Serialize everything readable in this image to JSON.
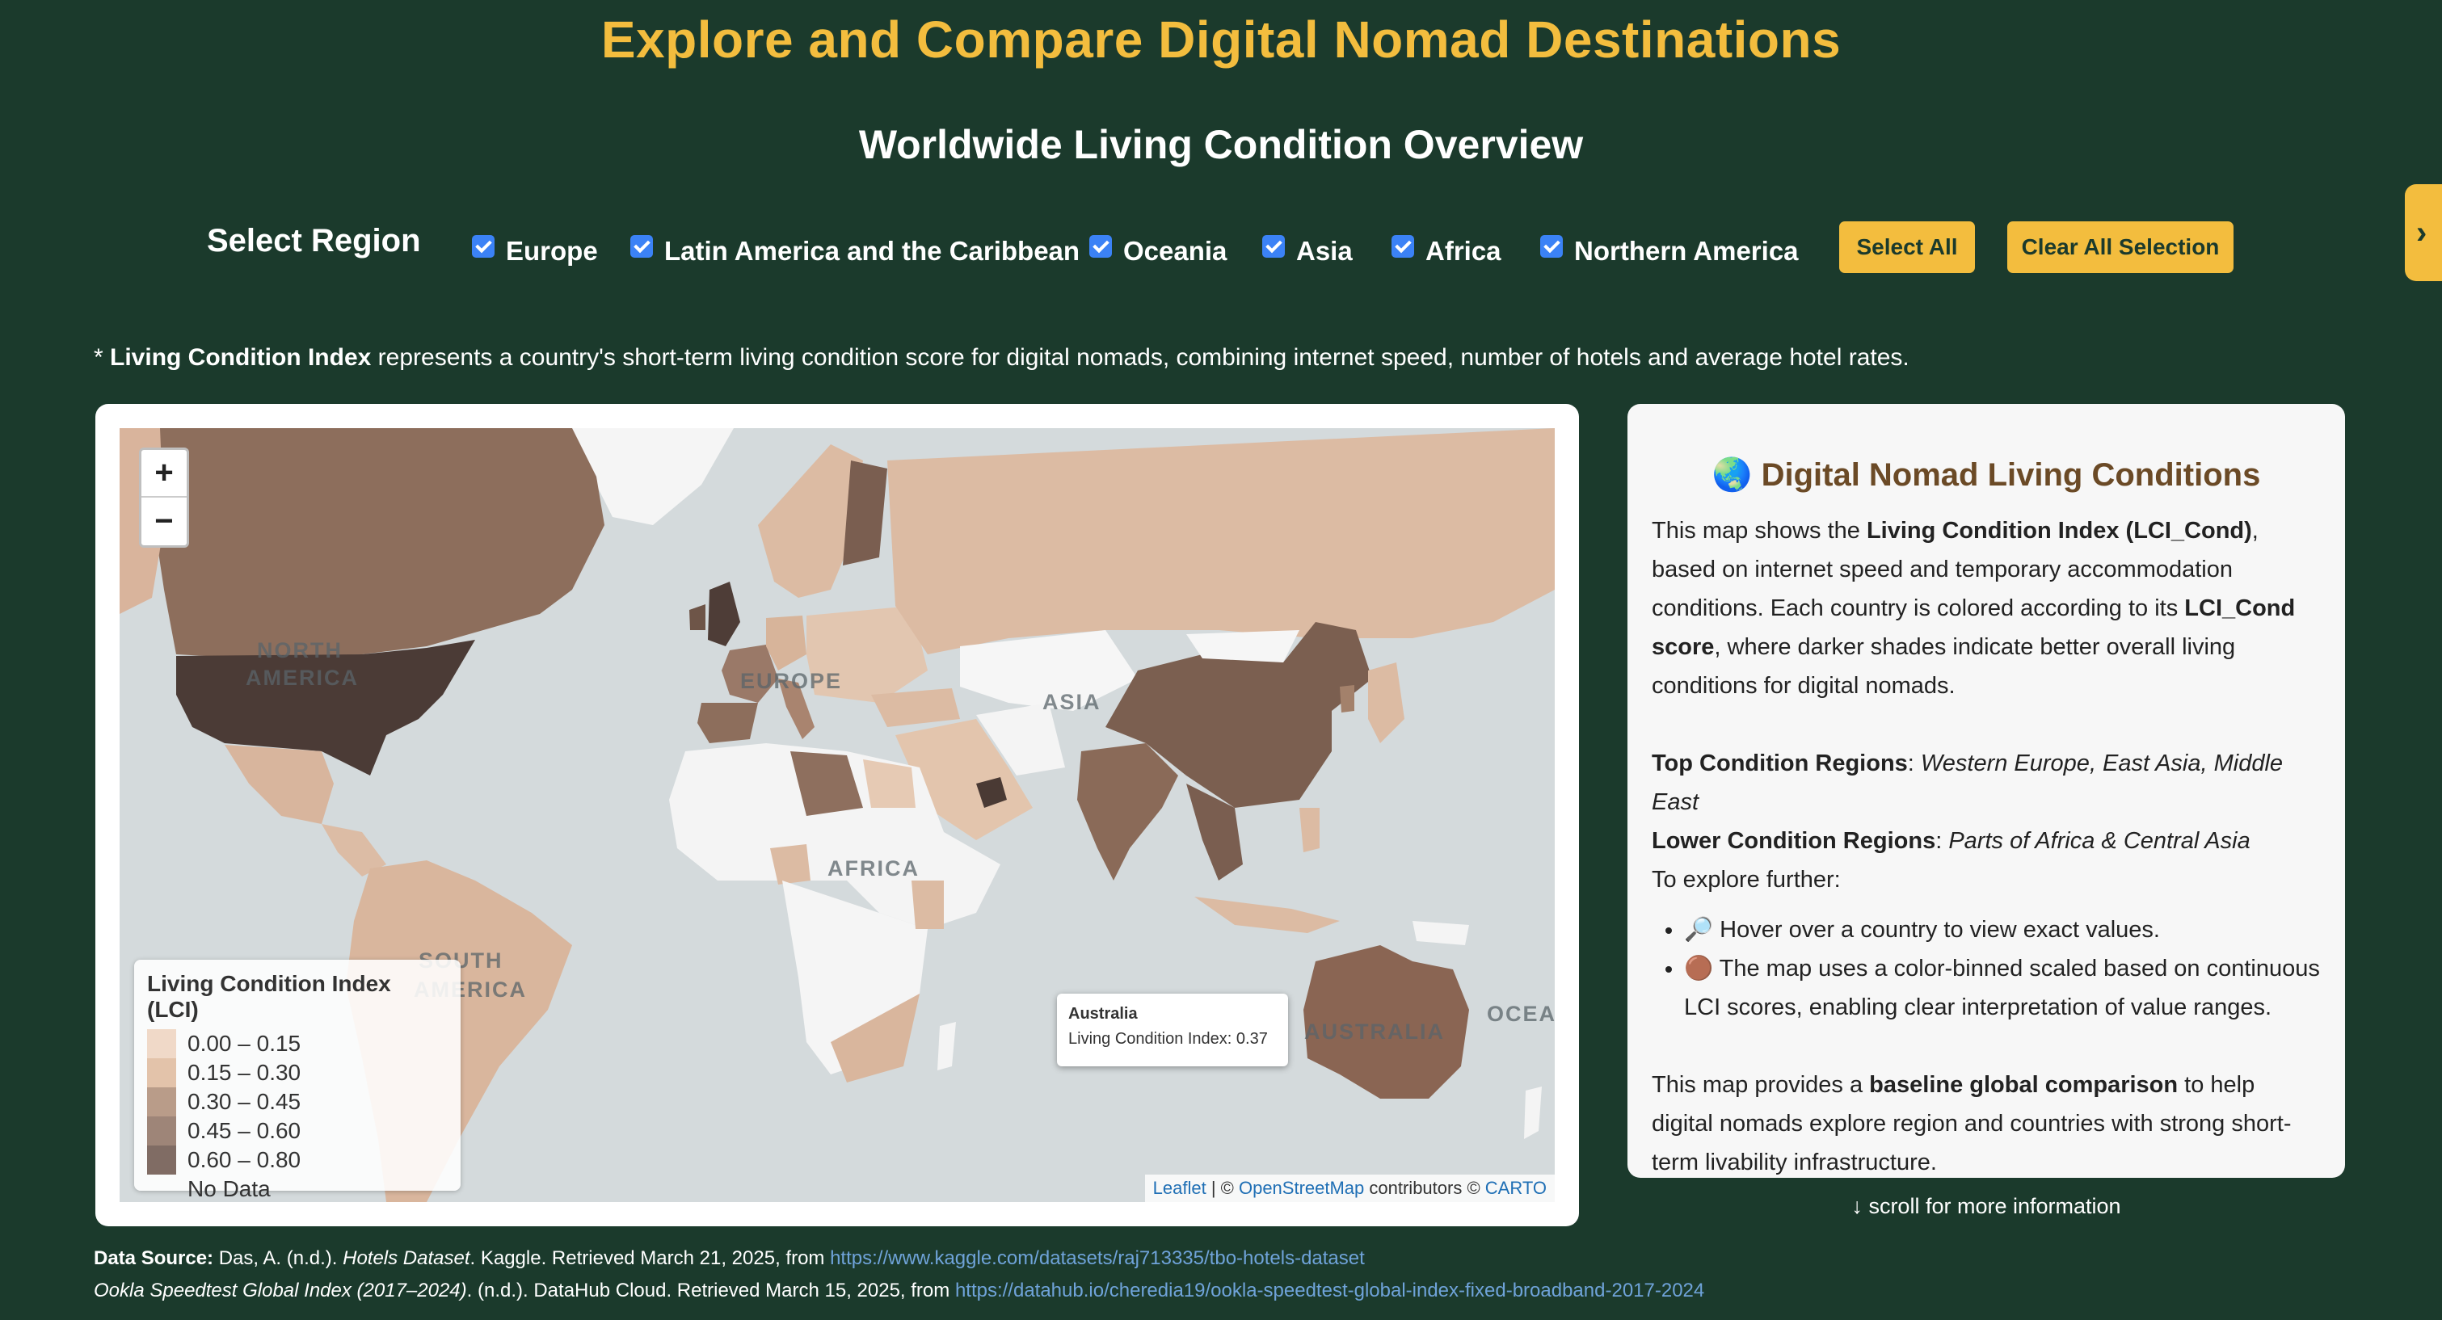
{
  "header": {
    "title": "Explore and Compare Digital Nomad Destinations",
    "subtitle": "Worldwide Living Condition Overview"
  },
  "region_filter": {
    "label": "Select Region",
    "regions": [
      {
        "label": "Europe",
        "checked": true
      },
      {
        "label": "Latin America and the Caribbean",
        "checked": true
      },
      {
        "label": "Oceania",
        "checked": true
      },
      {
        "label": "Asia",
        "checked": true
      },
      {
        "label": "Africa",
        "checked": true
      },
      {
        "label": "Northern America",
        "checked": true
      }
    ],
    "select_all_label": "Select All",
    "clear_all_label": "Clear All Selection"
  },
  "side_tab": {
    "glyph": "›"
  },
  "note": {
    "prefix": "* ",
    "term": "Living Condition Index",
    "text": " represents a country's short-term living condition score for digital nomads, combining internet speed, number of hotels and average hotel rates."
  },
  "map": {
    "zoom_in": "+",
    "zoom_out": "−",
    "labels": {
      "north_america_1": "NORTH",
      "north_america_2": "AMERICA",
      "europe": "EUROPE",
      "asia": "ASIA",
      "africa": "AFRICA",
      "south_america_1": "SOUTH",
      "south_america_2": "AMERICA",
      "australia": "AUSTRALIA",
      "oceania": "OCEA"
    },
    "legend": {
      "title": "Living Condition Index (LCI)",
      "bins": [
        {
          "label": "0.00 – 0.15",
          "color": "#f0d9c8"
        },
        {
          "label": "0.15 – 0.30",
          "color": "#e3c3aa"
        },
        {
          "label": "0.30 – 0.45",
          "color": "#b99c89"
        },
        {
          "label": "0.45 – 0.60",
          "color": "#9e8578"
        },
        {
          "label": "0.60 – 0.80",
          "color": "#806c64"
        }
      ],
      "no_data": "No Data"
    },
    "tooltip": {
      "country": "Australia",
      "value_text": "Living Condition Index: 0.37"
    },
    "attribution": {
      "leaflet": "Leaflet",
      "sep": " | © ",
      "osm": "OpenStreetMap",
      "contributors": " contributors © ",
      "carto": "CARTO"
    }
  },
  "info_panel": {
    "title": "🌏 Digital Nomad Living Conditions",
    "p1_a": "This map shows the ",
    "p1_b": "Living Condition Index (LCI_Cond)",
    "p1_c": ", based on internet speed and temporary accommodation conditions. Each country is colored according to its ",
    "p1_d": "LCI_Cond score",
    "p1_e": ", where darker shades indicate better overall living conditions for digital nomads.",
    "top_label": "Top Condition Regions",
    "top_value": "Western Europe, East Asia, Middle East",
    "lower_label": "Lower Condition Regions",
    "lower_value": "Parts of Africa & Central Asia",
    "explore": "To explore further:",
    "bullet1": "🔎 Hover over a country to view exact values.",
    "bullet2": "🟤 The map uses a color-binned scaled based on continuous LCI scores, enabling clear interpretation of value ranges.",
    "p3_a": "This map provides a ",
    "p3_b": "baseline global comparison",
    "p3_c": " to help digital nomads explore region and countries with strong short-term livability infrastructure."
  },
  "scroll_hint": "↓ scroll for more information",
  "sources": {
    "s1_label": "Data Source:",
    "s1_a": " Das, A. (n.d.). ",
    "s1_title": "Hotels Dataset",
    "s1_b": ". Kaggle. Retrieved March 21, 2025, from ",
    "s1_url": "https://www.kaggle.com/datasets/raj713335/tbo-hotels-dataset",
    "s2_title": "Ookla Speedtest Global Index (2017–2024)",
    "s2_a": ". (n.d.). DataHub Cloud. Retrieved March 15, 2025, from ",
    "s2_url": "https://datahub.io/cheredia19/ookla-speedtest-global-index-fixed-broadband-2017-2024"
  }
}
